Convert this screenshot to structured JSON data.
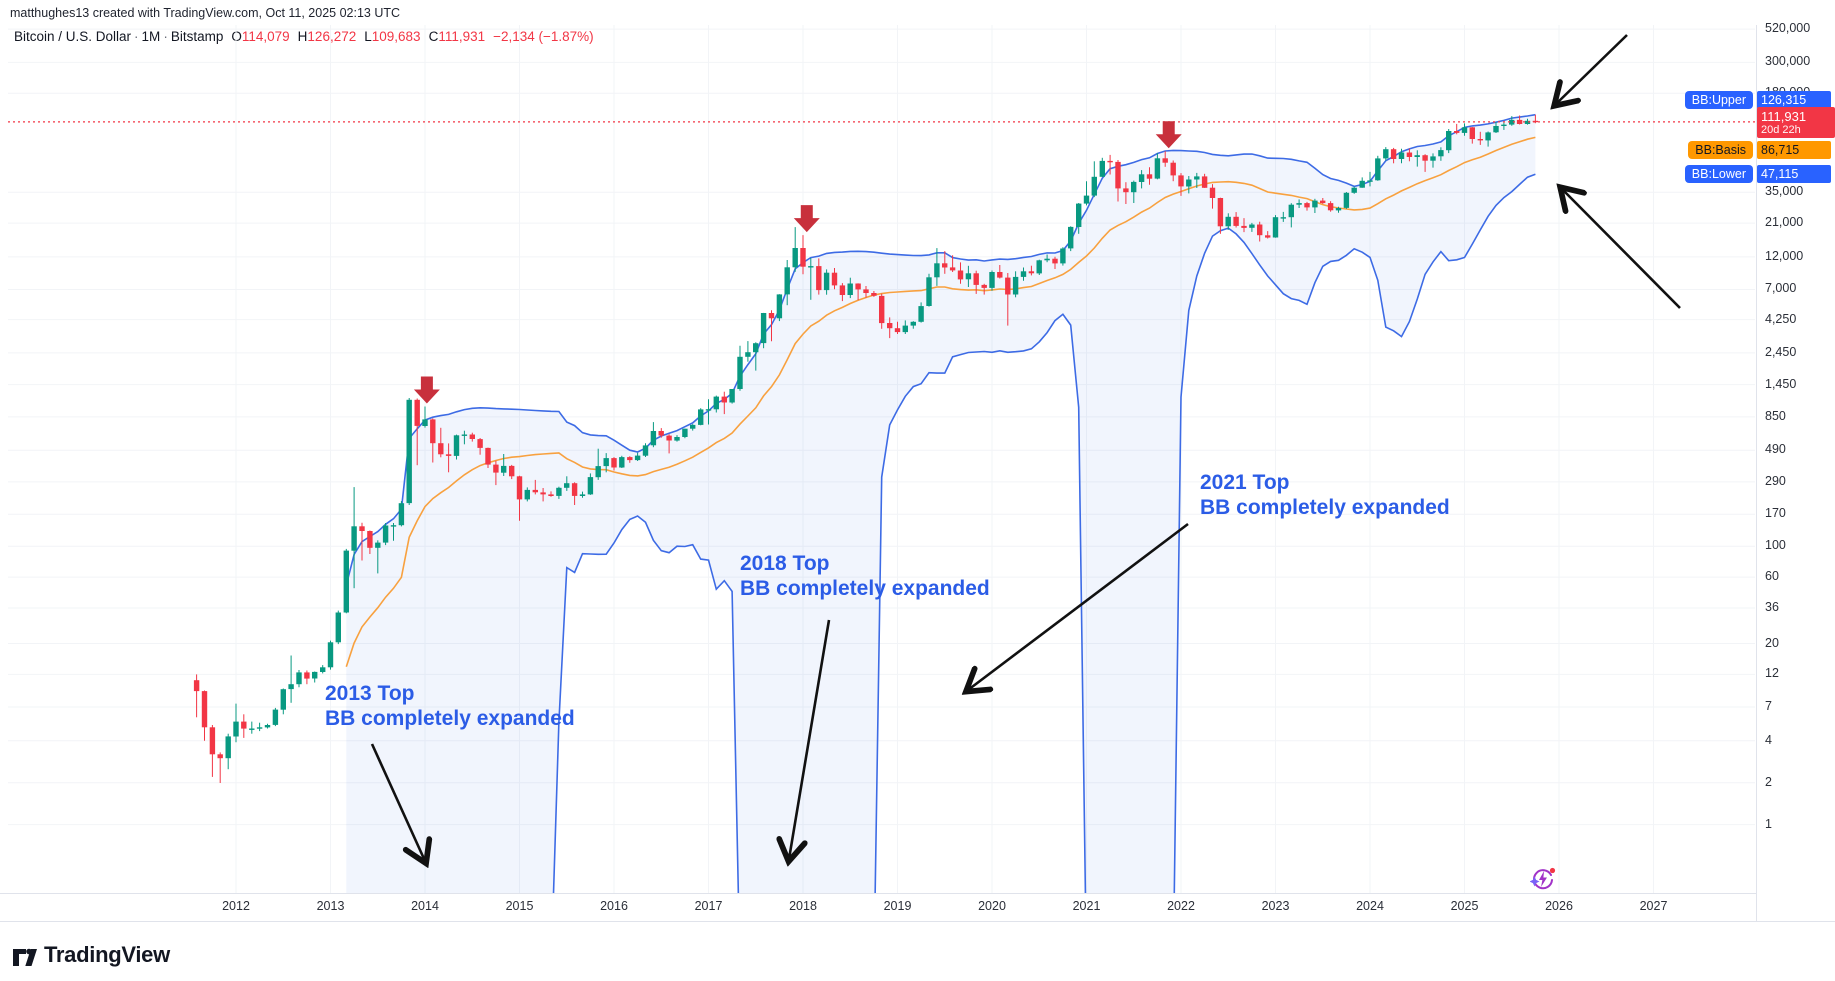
{
  "watermark": "matthughes13 created with TradingView.com, Oct 11, 2025 02:13 UTC",
  "legend": {
    "title": "Bitcoin / U.S. Dollar",
    "separator": "·",
    "interval": "1M",
    "exchange": "Bitstamp",
    "o_label": "O",
    "o": "114,079",
    "h_label": "H",
    "h": "126,272",
    "l_label": "L",
    "l": "109,683",
    "c_label": "C",
    "c": "111,931",
    "change": "−2,134 (−1.87%)"
  },
  "badges": {
    "bb_upper": {
      "label": "BB:Upper",
      "value": "126,315",
      "value_num": 126315
    },
    "price": {
      "value": "111,931",
      "countdown": "20d 22h",
      "value_num": 111931
    },
    "bb_basis": {
      "label": "BB:Basis",
      "value": "86,715",
      "value_num": 86715
    },
    "bb_lower": {
      "label": "BB:Lower",
      "value": "47,115",
      "value_num": 47115
    }
  },
  "annotations": [
    {
      "id": "top-2013",
      "line1": "2013 Top",
      "line2": "BB completely expanded"
    },
    {
      "id": "top-2018",
      "line1": "2018 Top",
      "line2": "BB completely expanded"
    },
    {
      "id": "top-2021",
      "line1": "2021 Top",
      "line2": "BB completely expanded"
    }
  ],
  "logo": {
    "text": "TradingView"
  },
  "chart_data": {
    "type": "candlestick",
    "title": "Bitcoin / U.S. Dollar · 1M · Bitstamp",
    "scale": "logarithmic",
    "grid": true,
    "legend_position": "top-left",
    "indicator": {
      "name": "Bollinger Bands",
      "length": 20,
      "stdev_mult": 2,
      "upper": 126315,
      "basis": 86715,
      "lower": 47115
    },
    "last_price": 111931,
    "bar_close_countdown": "20d 22h",
    "y_ticks": [
      {
        "label": "520,000",
        "value": 520000
      },
      {
        "label": "300,000",
        "value": 300000
      },
      {
        "label": "180,000",
        "value": 180000
      },
      {
        "label": "35,000",
        "value": 35000
      },
      {
        "label": "21,000",
        "value": 21000
      },
      {
        "label": "12,000",
        "value": 12000
      },
      {
        "label": "7,000",
        "value": 7000
      },
      {
        "label": "4,250",
        "value": 4250
      },
      {
        "label": "2,450",
        "value": 2450
      },
      {
        "label": "1,450",
        "value": 1450
      },
      {
        "label": "850",
        "value": 850
      },
      {
        "label": "490",
        "value": 490
      },
      {
        "label": "290",
        "value": 290
      },
      {
        "label": "170",
        "value": 170
      },
      {
        "label": "100",
        "value": 100
      },
      {
        "label": "60",
        "value": 60
      },
      {
        "label": "36",
        "value": 36
      },
      {
        "label": "20",
        "value": 20
      },
      {
        "label": "12",
        "value": 12
      },
      {
        "label": "7",
        "value": 7
      },
      {
        "label": "4",
        "value": 4
      },
      {
        "label": "2",
        "value": 2
      },
      {
        "label": "1",
        "value": 1
      }
    ],
    "x_years": [
      "2012",
      "2013",
      "2014",
      "2015",
      "2016",
      "2017",
      "2018",
      "2019",
      "2020",
      "2021",
      "2022",
      "2023",
      "2024",
      "2025",
      "2026",
      "2027"
    ],
    "colors": {
      "up": "#089981",
      "down": "#F23645",
      "band": "#3D6BE5",
      "basis": "#F8A13F",
      "band_fill": "rgba(61,120,229,0.07)",
      "price_line": "#F23645",
      "top_marker": "#C8303C",
      "annotation": "#2B5CE6",
      "grid": "#F2F4F7"
    },
    "top_markers": [
      {
        "t": 2014.02
      },
      {
        "t": 2018.04
      },
      {
        "t": 2021.87
      }
    ],
    "candles": [
      [
        2011.583,
        10.9,
        12,
        5.9,
        9.1
      ],
      [
        2011.667,
        9.1,
        9.2,
        4,
        5
      ],
      [
        2011.75,
        5,
        5.2,
        2.2,
        3.2
      ],
      [
        2011.833,
        3.2,
        3.3,
        1.99,
        3
      ],
      [
        2011.917,
        3,
        4.5,
        2.5,
        4.3
      ],
      [
        2012.0,
        4.3,
        7.4,
        3.9,
        5.5
      ],
      [
        2012.083,
        5.5,
        6.2,
        4.2,
        4.9
      ],
      [
        2012.167,
        4.9,
        5.5,
        4.5,
        4.9
      ],
      [
        2012.25,
        4.9,
        5.4,
        4.7,
        5
      ],
      [
        2012.333,
        5,
        5.3,
        4.9,
        5.2
      ],
      [
        2012.417,
        5.2,
        6.9,
        5.1,
        6.7
      ],
      [
        2012.5,
        6.7,
        9.5,
        6.2,
        9.4
      ],
      [
        2012.583,
        9.4,
        16.4,
        7.5,
        10.2
      ],
      [
        2012.667,
        10.2,
        12.9,
        9.7,
        12.4
      ],
      [
        2012.75,
        12.4,
        12.8,
        10.2,
        11.2
      ],
      [
        2012.833,
        11.2,
        12.6,
        10.5,
        12.5
      ],
      [
        2012.917,
        12.5,
        14,
        12.2,
        13.5
      ],
      [
        2013.0,
        13.5,
        21,
        13,
        20.4
      ],
      [
        2013.083,
        20.4,
        34.5,
        19.8,
        33.4
      ],
      [
        2013.167,
        33.4,
        95.7,
        33,
        93
      ],
      [
        2013.25,
        93,
        266,
        50,
        139.2
      ],
      [
        2013.333,
        139.2,
        147.5,
        79,
        128.8
      ],
      [
        2013.417,
        128.8,
        129.8,
        88,
        97.5
      ],
      [
        2013.5,
        97.5,
        110.3,
        63.8,
        106.2
      ],
      [
        2013.583,
        106.2,
        147,
        102,
        141
      ],
      [
        2013.667,
        141,
        147,
        109.7,
        141.8
      ],
      [
        2013.75,
        141.8,
        211,
        139,
        204
      ],
      [
        2013.833,
        204,
        1163,
        198,
        1127.5
      ],
      [
        2013.917,
        1127.5,
        1153.3,
        382.2,
        732
      ],
      [
        2014.0,
        732,
        1010,
        712,
        816
      ],
      [
        2014.083,
        816,
        830,
        400,
        550
      ],
      [
        2014.167,
        550,
        710,
        436,
        458
      ],
      [
        2014.25,
        458,
        548,
        340,
        446
      ],
      [
        2014.333,
        446,
        634,
        420,
        627
      ],
      [
        2014.417,
        627,
        677,
        540,
        635
      ],
      [
        2014.5,
        635,
        655,
        565,
        589
      ],
      [
        2014.583,
        589,
        600,
        455,
        509
      ],
      [
        2014.667,
        509,
        512,
        365,
        386
      ],
      [
        2014.75,
        386,
        412,
        275,
        338
      ],
      [
        2014.833,
        338,
        460,
        320,
        378
      ],
      [
        2014.917,
        378,
        384,
        304,
        318
      ],
      [
        2015.0,
        318,
        321,
        152.4,
        217
      ],
      [
        2015.083,
        217,
        265,
        210,
        254
      ],
      [
        2015.167,
        254,
        300,
        236,
        244
      ],
      [
        2015.25,
        244,
        262,
        210,
        236
      ],
      [
        2015.333,
        236,
        248,
        227,
        230
      ],
      [
        2015.417,
        230,
        268,
        219,
        263
      ],
      [
        2015.5,
        263,
        318,
        250,
        284
      ],
      [
        2015.583,
        284,
        288,
        198,
        230
      ],
      [
        2015.667,
        230,
        247,
        223,
        236
      ],
      [
        2015.75,
        236,
        334,
        234,
        314
      ],
      [
        2015.833,
        314,
        502,
        300,
        377
      ],
      [
        2015.917,
        377,
        467,
        340,
        430
      ],
      [
        2016.0,
        430,
        437,
        350,
        368
      ],
      [
        2016.083,
        368,
        447,
        365,
        437
      ],
      [
        2016.167,
        437,
        444,
        398,
        416
      ],
      [
        2016.25,
        416,
        470,
        410,
        448
      ],
      [
        2016.333,
        448,
        550,
        438,
        531
      ],
      [
        2016.417,
        531,
        780,
        515,
        673
      ],
      [
        2016.5,
        673,
        706,
        603,
        624
      ],
      [
        2016.583,
        624,
        639,
        465,
        575
      ],
      [
        2016.667,
        575,
        629,
        565,
        610
      ],
      [
        2016.75,
        610,
        701,
        598,
        700
      ],
      [
        2016.833,
        700,
        755,
        678,
        745
      ],
      [
        2016.917,
        745,
        982,
        740,
        963
      ],
      [
        2017.0,
        963,
        1140,
        750,
        965
      ],
      [
        2017.083,
        965,
        1210,
        915,
        1190
      ],
      [
        2017.167,
        1190,
        1290,
        890,
        1080
      ],
      [
        2017.25,
        1080,
        1350,
        1060,
        1350
      ],
      [
        2017.333,
        1350,
        2760,
        1310,
        2300
      ],
      [
        2017.417,
        2300,
        2980,
        2120,
        2480
      ],
      [
        2017.5,
        2480,
        2920,
        1830,
        2880
      ],
      [
        2017.583,
        2880,
        4750,
        2650,
        4740
      ],
      [
        2017.667,
        4740,
        4960,
        2970,
        4340
      ],
      [
        2017.75,
        4340,
        6470,
        4150,
        6450
      ],
      [
        2017.833,
        6450,
        11400,
        5400,
        10100
      ],
      [
        2017.917,
        10100,
        19666,
        9380,
        13900
      ],
      [
        2018.0,
        13900,
        17200,
        9000,
        10200
      ],
      [
        2018.083,
        10200,
        11790,
        5900,
        10300
      ],
      [
        2018.167,
        10300,
        11700,
        6430,
        6930
      ],
      [
        2018.25,
        6930,
        9760,
        6420,
        9240
      ],
      [
        2018.333,
        9240,
        9990,
        7030,
        7490
      ],
      [
        2018.417,
        7490,
        7780,
        5780,
        6390
      ],
      [
        2018.5,
        6390,
        8500,
        6070,
        7730
      ],
      [
        2018.583,
        7730,
        7760,
        5860,
        7010
      ],
      [
        2018.667,
        7010,
        7410,
        6100,
        6600
      ],
      [
        2018.75,
        6600,
        6830,
        6190,
        6300
      ],
      [
        2018.833,
        6300,
        6540,
        3650,
        4020
      ],
      [
        2018.917,
        4020,
        4410,
        3130,
        3690
      ],
      [
        2019.0,
        3690,
        4110,
        3350,
        3460
      ],
      [
        2019.083,
        3460,
        4200,
        3350,
        3850
      ],
      [
        2019.167,
        3850,
        4140,
        3660,
        4100
      ],
      [
        2019.25,
        4100,
        5650,
        4050,
        5320
      ],
      [
        2019.333,
        5320,
        9070,
        5270,
        8560
      ],
      [
        2019.417,
        8560,
        13880,
        7430,
        10800
      ],
      [
        2019.5,
        10800,
        13200,
        9070,
        10080
      ],
      [
        2019.583,
        10080,
        12320,
        9350,
        9590
      ],
      [
        2019.667,
        9590,
        10950,
        7700,
        8280
      ],
      [
        2019.75,
        8280,
        10350,
        7290,
        9150
      ],
      [
        2019.833,
        9150,
        9550,
        6510,
        7550
      ],
      [
        2019.917,
        7550,
        7690,
        6430,
        7190
      ],
      [
        2020.0,
        7190,
        9580,
        6850,
        9350
      ],
      [
        2020.083,
        9350,
        10500,
        8400,
        8520
      ],
      [
        2020.167,
        8520,
        9190,
        3850,
        6440
      ],
      [
        2020.25,
        6440,
        9460,
        6150,
        8620
      ],
      [
        2020.333,
        8620,
        10070,
        8100,
        9450
      ],
      [
        2020.417,
        9450,
        10380,
        8830,
        9140
      ],
      [
        2020.5,
        9140,
        11450,
        8900,
        11350
      ],
      [
        2020.583,
        11350,
        12490,
        11000,
        11650
      ],
      [
        2020.667,
        11650,
        12050,
        9820,
        10780
      ],
      [
        2020.75,
        10780,
        14100,
        10400,
        13800
      ],
      [
        2020.833,
        13800,
        19900,
        13200,
        19700
      ],
      [
        2020.917,
        19700,
        29300,
        17600,
        29000
      ],
      [
        2021.0,
        29000,
        42000,
        28150,
        33100
      ],
      [
        2021.083,
        33100,
        58400,
        32300,
        45200
      ],
      [
        2021.167,
        45200,
        61800,
        44950,
        58800
      ],
      [
        2021.25,
        58800,
        64900,
        46930,
        57800
      ],
      [
        2021.333,
        57800,
        59600,
        30000,
        37300
      ],
      [
        2021.417,
        37300,
        41300,
        28800,
        35000
      ],
      [
        2021.5,
        35000,
        42400,
        29300,
        41500
      ],
      [
        2021.583,
        41500,
        50500,
        37300,
        47100
      ],
      [
        2021.667,
        47100,
        52900,
        39600,
        43800
      ],
      [
        2021.75,
        43800,
        66900,
        43300,
        61300
      ],
      [
        2021.833,
        61300,
        69000,
        53300,
        57000
      ],
      [
        2021.917,
        57000,
        59100,
        42000,
        46200
      ],
      [
        2022.0,
        46200,
        47990,
        32950,
        38500
      ],
      [
        2022.083,
        38500,
        45800,
        34300,
        43200
      ],
      [
        2022.167,
        43200,
        48200,
        37550,
        45500
      ],
      [
        2022.25,
        45500,
        47450,
        37580,
        37700
      ],
      [
        2022.333,
        37700,
        40000,
        26700,
        31800
      ],
      [
        2022.417,
        31800,
        31980,
        17590,
        19900
      ],
      [
        2022.5,
        19900,
        24670,
        18780,
        23300
      ],
      [
        2022.583,
        23300,
        25200,
        19520,
        20050
      ],
      [
        2022.667,
        20050,
        22800,
        18100,
        19400
      ],
      [
        2022.75,
        19400,
        21080,
        18150,
        20500
      ],
      [
        2022.833,
        20500,
        21480,
        15480,
        17170
      ],
      [
        2022.917,
        17170,
        18390,
        16260,
        16540
      ],
      [
        2023.0,
        16540,
        23960,
        16490,
        23130
      ],
      [
        2023.083,
        23130,
        25250,
        21400,
        23150
      ],
      [
        2023.167,
        23150,
        29180,
        19550,
        28470
      ],
      [
        2023.25,
        28470,
        31050,
        26940,
        29250
      ],
      [
        2023.333,
        29250,
        29820,
        25810,
        27220
      ],
      [
        2023.417,
        27220,
        31400,
        24800,
        30470
      ],
      [
        2023.5,
        30470,
        31800,
        28860,
        29230
      ],
      [
        2023.583,
        29230,
        30180,
        25350,
        25940
      ],
      [
        2023.667,
        25940,
        27480,
        24900,
        26970
      ],
      [
        2023.75,
        26970,
        35150,
        26540,
        34650
      ],
      [
        2023.833,
        34650,
        38400,
        34100,
        37720
      ],
      [
        2023.917,
        37720,
        44700,
        37620,
        42280
      ],
      [
        2024.0,
        42280,
        48970,
        38500,
        42580
      ],
      [
        2024.083,
        42580,
        63950,
        42270,
        61200
      ],
      [
        2024.167,
        61200,
        73800,
        59000,
        71280
      ],
      [
        2024.25,
        71280,
        72800,
        56500,
        60640
      ],
      [
        2024.333,
        60640,
        71950,
        56550,
        67500
      ],
      [
        2024.417,
        67500,
        71980,
        58400,
        62700
      ],
      [
        2024.5,
        62700,
        70000,
        53500,
        64600
      ],
      [
        2024.583,
        64600,
        65600,
        49000,
        58970
      ],
      [
        2024.667,
        58970,
        66500,
        52550,
        63330
      ],
      [
        2024.75,
        63330,
        73600,
        58900,
        70200
      ],
      [
        2024.833,
        70200,
        99600,
        66800,
        96400
      ],
      [
        2024.917,
        96400,
        108300,
        91200,
        93400
      ],
      [
        2025.0,
        93400,
        109350,
        89150,
        102400
      ],
      [
        2025.083,
        102400,
        102800,
        78200,
        84400
      ],
      [
        2025.167,
        84400,
        95100,
        76600,
        82500
      ],
      [
        2025.25,
        82500,
        95500,
        74500,
        94200
      ],
      [
        2025.333,
        94200,
        112000,
        93300,
        104600
      ],
      [
        2025.417,
        104600,
        110500,
        98200,
        107100
      ],
      [
        2025.5,
        107100,
        123200,
        105100,
        115800
      ],
      [
        2025.583,
        115800,
        124500,
        107300,
        108200
      ],
      [
        2025.667,
        108200,
        117900,
        107200,
        114000
      ],
      [
        2025.75,
        114079,
        126272,
        109683,
        111931
      ]
    ]
  }
}
